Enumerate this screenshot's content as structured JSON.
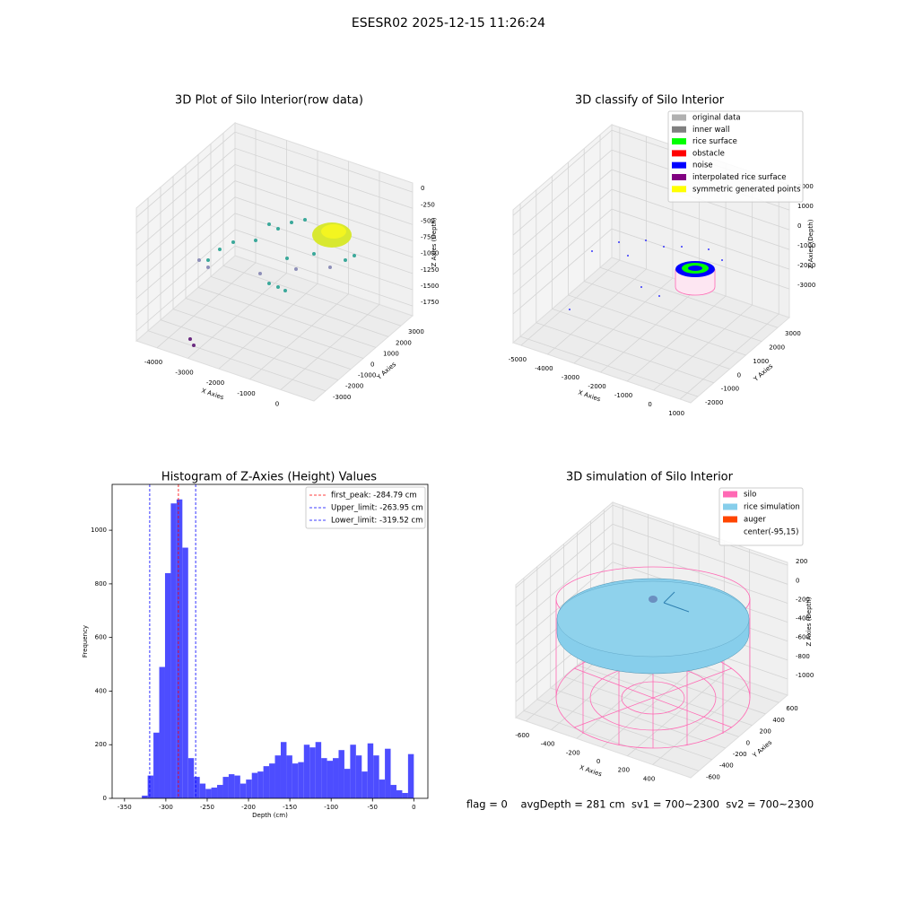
{
  "title": "ESESR02 2025-12-15 11:26:24",
  "footer": "flag = 0    avgDepth = 281 cm  sv1 = 700~2300  sv2 = 700~2300",
  "chart_data": [
    {
      "type": "scatter3d",
      "title": "3D Plot of Silo Interior(row data)",
      "xlabel": "X Axies",
      "ylabel": "Y Axies",
      "zlabel": "Z Axies (Depth)",
      "xlim": [
        -4667,
        1073
      ],
      "ylim": [
        -3930,
        3930
      ],
      "zlim": [
        -1900,
        140
      ],
      "xticks": [
        -4000,
        -3000,
        -2000,
        -1000,
        0
      ],
      "yticks": [
        -3000,
        -2000,
        -1000,
        0,
        1000,
        2000,
        3000
      ],
      "zticks": [
        0,
        -250,
        -500,
        -750,
        -1000,
        -1250,
        -1500,
        -1750
      ],
      "grid": true
    },
    {
      "type": "scatter3d",
      "title": "3D classify of Silo Interior",
      "xlabel": "X Axies",
      "ylabel": "Y Axies",
      "zlabel": "Z Axies (Depth)",
      "xlim": [
        -5300,
        1400
      ],
      "ylim": [
        -2450,
        3730
      ],
      "zlim": [
        -4450,
        2280
      ],
      "xticks": [
        -5000,
        -4000,
        -3000,
        -2000,
        -1000,
        0,
        1000
      ],
      "yticks": [
        -2000,
        -1000,
        0,
        1000,
        2000,
        3000
      ],
      "zticks": [
        -3000,
        -2000,
        -1000,
        0,
        1000,
        2000
      ],
      "grid": true,
      "legend_loc": "upper right",
      "legend": [
        {
          "label": "original data",
          "color": "#b0b0b0"
        },
        {
          "label": "inner wall",
          "color": "#808080"
        },
        {
          "label": "rice surface",
          "color": "#00ff00"
        },
        {
          "label": "obstacle",
          "color": "#ff0000"
        },
        {
          "label": "noise",
          "color": "#0000ff"
        },
        {
          "label": "interpolated rice surface",
          "color": "#800080"
        },
        {
          "label": "symmetric generated points",
          "color": "#ffff00"
        }
      ]
    },
    {
      "type": "histogram",
      "title": "Histogram of Z-Axies (Height) Values",
      "xlabel": "Depth (cm)",
      "ylabel": "Frequency",
      "color": "#4d4dff",
      "bins": [
        -329,
        -322,
        -315,
        -308,
        -301,
        -294,
        -287,
        -280,
        -273,
        -266,
        -259,
        -252,
        -245,
        -238,
        -231,
        -224,
        -217,
        -210,
        -203,
        -196,
        -189,
        -182,
        -175,
        -168,
        -161,
        -154,
        -147,
        -140,
        -133,
        -126,
        -119,
        -112,
        -105,
        -98,
        -91,
        -84,
        -77,
        -70,
        -63,
        -56,
        -49,
        -42,
        -35,
        -28,
        -21,
        -14,
        -7,
        0
      ],
      "values": [
        10,
        85,
        245,
        490,
        840,
        1100,
        1115,
        935,
        150,
        80,
        55,
        35,
        40,
        50,
        80,
        90,
        85,
        55,
        70,
        95,
        100,
        120,
        130,
        160,
        210,
        160,
        130,
        135,
        200,
        190,
        210,
        150,
        140,
        150,
        180,
        110,
        200,
        160,
        100,
        205,
        160,
        70,
        185,
        50,
        30,
        20,
        165
      ],
      "xlim": [
        -365,
        17
      ],
      "ylim": [
        0,
        1171
      ],
      "xticks": [
        -350,
        -300,
        -250,
        -200,
        -150,
        -100,
        -50,
        0
      ],
      "yticks": [
        0,
        200,
        400,
        600,
        800,
        1000
      ],
      "legend_loc": "upper right",
      "lines": [
        {
          "value": -284.79,
          "label": "first_peak: -284.79 cm",
          "color": "#ff0000"
        },
        {
          "value": -263.95,
          "label": "Upper_limit: -263.95 cm",
          "color": "#0000ff"
        },
        {
          "value": -319.52,
          "label": "Lower_limit: -319.52 cm",
          "color": "#0000ff"
        }
      ]
    },
    {
      "type": "surface3d",
      "title": "3D simulation of Silo Interior",
      "xlabel": "X Axies",
      "ylabel": "Y Axies",
      "zlabel": "Z Axies (Depth)",
      "xlim": [
        -680,
        700
      ],
      "ylim": [
        -720,
        730
      ],
      "zlim": [
        -1170,
        230
      ],
      "xticks": [
        -600,
        -400,
        -200,
        0,
        200,
        400
      ],
      "yticks": [
        -600,
        -400,
        -200,
        0,
        200,
        400,
        600
      ],
      "zticks": [
        200,
        0,
        -200,
        -400,
        -600,
        -800,
        -1000
      ],
      "grid": true,
      "legend_loc": "upper right",
      "legend": [
        {
          "label": "silo",
          "color": "#ff69b4"
        },
        {
          "label": "rice simulation",
          "color": "#87ceeb"
        },
        {
          "label": "auger",
          "color": "#ff4500"
        },
        {
          "label": "center(-95,15)",
          "color": "#ffffff"
        }
      ]
    }
  ]
}
